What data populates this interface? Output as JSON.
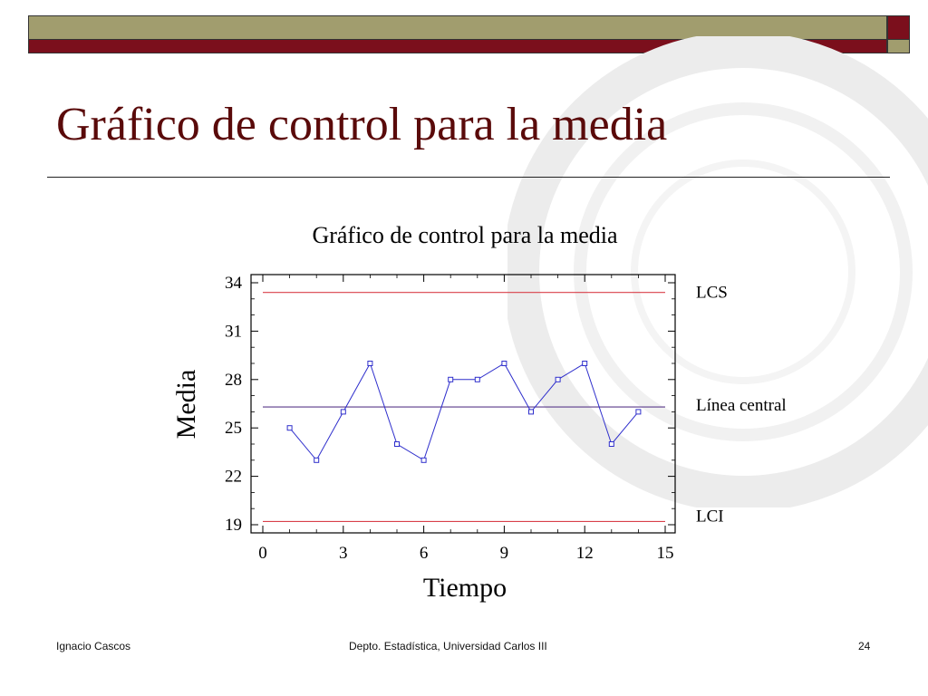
{
  "slide": {
    "title": "Gráfico de control para la media",
    "footer": {
      "author": "Ignacio Cascos",
      "department": "Depto. Estadística, Universidad Carlos III",
      "page_number": "24"
    }
  },
  "chart_data": {
    "type": "line",
    "title": "Gráfico de control para la media",
    "xlabel": "Tiempo",
    "ylabel": "Media",
    "xlim": [
      0,
      15
    ],
    "ylim": [
      19,
      34
    ],
    "xticks": [
      0,
      3,
      6,
      9,
      12,
      15
    ],
    "yticks": [
      19,
      22,
      25,
      28,
      31,
      34
    ],
    "grid": false,
    "series": [
      {
        "x": [
          1,
          2,
          3,
          4,
          5,
          6,
          7,
          8,
          9,
          10,
          11,
          12,
          13,
          14
        ],
        "y": [
          25,
          23,
          26,
          29,
          24,
          23,
          28,
          28,
          29,
          26,
          28,
          29,
          24,
          26
        ],
        "color": "#2f2fcc"
      }
    ],
    "control_lines": [
      {
        "label": "LCS",
        "y": 33.4,
        "color": "#d9404a"
      },
      {
        "label": "Línea central",
        "y": 26.3,
        "color": "#5a3a8a"
      },
      {
        "label": "LCI",
        "y": 19.2,
        "color": "#d9404a"
      }
    ]
  }
}
